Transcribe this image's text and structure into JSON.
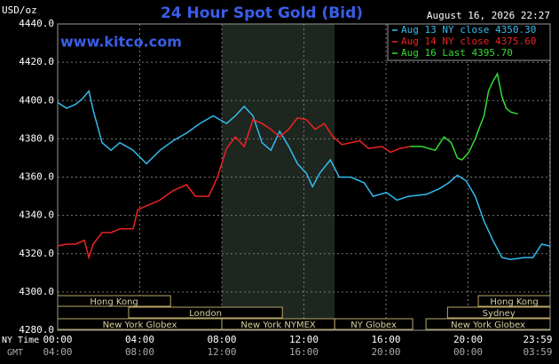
{
  "chart_data": {
    "type": "line",
    "title": "24 Hour Spot Gold (Bid)",
    "unit_label": "USD/oz",
    "timestamp": "August 16, 2026 22:27",
    "site": "www.kitco.com",
    "x_row_labels": [
      "NY Time",
      "GMT"
    ],
    "xlim": [
      0,
      24
    ],
    "xticks": [
      {
        "value": 0,
        "label": "00:00"
      },
      {
        "value": 4,
        "label": "04:00"
      },
      {
        "value": 8,
        "label": "08:00"
      },
      {
        "value": 12,
        "label": "12:00"
      },
      {
        "value": 16,
        "label": "16:00"
      },
      {
        "value": 20,
        "label": "20:00"
      },
      {
        "value": 23.98,
        "label": "23:59"
      }
    ],
    "xticks_gmt": [
      "04:00",
      "08:00",
      "12:00",
      "16:00",
      "20:00",
      "00:00",
      "03:59"
    ],
    "ylim": [
      4280,
      4440
    ],
    "yticks": [
      {
        "value": 4280,
        "label": "4280.0"
      },
      {
        "value": 4300,
        "label": "4300.0"
      },
      {
        "value": 4320,
        "label": "4320.0"
      },
      {
        "value": 4340,
        "label": "4340.0"
      },
      {
        "value": 4360,
        "label": "4360.0"
      },
      {
        "value": 4380,
        "label": "4380.0"
      },
      {
        "value": 4400,
        "label": "4400.0"
      },
      {
        "value": 4420,
        "label": "4420.0"
      },
      {
        "value": 4440,
        "label": "4440.0"
      }
    ],
    "grid": true,
    "shaded_span": [
      8,
      13.5
    ],
    "session_rows": [
      [
        {
          "name": "Hong Kong",
          "start": 0,
          "end": 5.5
        },
        {
          "name": "Hong Kong",
          "start": 20.5,
          "end": 24
        }
      ],
      [
        {
          "name": "London",
          "start": 3.46,
          "end": 10.95
        },
        {
          "name": "Sydney",
          "start": 19,
          "end": 24
        }
      ],
      [
        {
          "name": "New York Globex",
          "start": 0,
          "end": 8
        },
        {
          "name": "New York NYMEX",
          "start": 8,
          "end": 13.5
        },
        {
          "name": "NY Globex",
          "start": 13.5,
          "end": 17.3
        },
        {
          "name": "New York Globex",
          "start": 17.95,
          "end": 24
        }
      ]
    ],
    "series": [
      {
        "name": "Aug 13 NY close 4350.30",
        "color": "#33bbee",
        "x": [
          0,
          0.43,
          0.87,
          1.21,
          1.52,
          1.73,
          2.16,
          2.6,
          3.03,
          3.68,
          4.33,
          4.98,
          5.63,
          6.28,
          6.93,
          7.58,
          8.23,
          8.66,
          9.09,
          9.52,
          9.96,
          10.39,
          10.82,
          11.26,
          11.69,
          12.12,
          12.42,
          12.77,
          13.29,
          13.72,
          14.29,
          14.94,
          15.37,
          16.02,
          16.54,
          17.1,
          17.97,
          18.61,
          19.05,
          19.48,
          19.91,
          20.35,
          20.78,
          21.21,
          21.65,
          22.08,
          22.73,
          23.16,
          23.59,
          24
        ],
        "values": [
          4399,
          4396,
          4398,
          4401,
          4405,
          4395,
          4378,
          4374,
          4378,
          4374,
          4367,
          4374,
          4379,
          4383,
          4388,
          4392,
          4388,
          4392,
          4397,
          4392,
          4378,
          4374,
          4384,
          4376,
          4367,
          4362,
          4355,
          4362,
          4369,
          4360,
          4360,
          4357,
          4350,
          4352,
          4348,
          4350,
          4351,
          4354,
          4357,
          4361,
          4358,
          4350,
          4337,
          4327,
          4318,
          4317,
          4318,
          4318,
          4325,
          4324
        ]
      },
      {
        "name": "Aug 14 NY close 4375.60",
        "color": "#ee2222",
        "x": [
          0,
          0.43,
          0.87,
          1.3,
          1.52,
          1.73,
          2.16,
          2.6,
          3.03,
          3.68,
          3.9,
          4.33,
          4.98,
          5.63,
          6.28,
          6.71,
          7.36,
          7.79,
          8.23,
          8.66,
          9.09,
          9.52,
          9.96,
          10.39,
          10.82,
          11.26,
          11.69,
          12.12,
          12.55,
          12.99,
          13.42,
          13.85,
          14.29,
          14.72,
          15.15,
          15.8,
          16.23,
          16.67,
          17.19
        ],
        "values": [
          4324,
          4325,
          4325,
          4327,
          4318,
          4325,
          4331,
          4331,
          4333,
          4333,
          4343,
          4345,
          4348,
          4353,
          4356,
          4350,
          4350,
          4360,
          4375,
          4381,
          4376,
          4390,
          4388,
          4385,
          4381,
          4385,
          4391,
          4390,
          4385,
          4388,
          4381,
          4377,
          4378,
          4379,
          4375,
          4376,
          4373,
          4375,
          4376
        ]
      },
      {
        "name": "Aug 16 Last 4395.70",
        "color": "#33dd33",
        "x": [
          17.19,
          17.75,
          18.4,
          18.83,
          19.18,
          19.48,
          19.7,
          20.04,
          20.35,
          20.56,
          20.78,
          21,
          21.21,
          21.43,
          21.65,
          21.86,
          22.08,
          22.42
        ],
        "values": [
          4376,
          4376,
          4374,
          4381,
          4378,
          4370,
          4369,
          4373,
          4380,
          4386,
          4392,
          4405,
          4410,
          4414,
          4402,
          4396,
          4394,
          4393
        ]
      }
    ]
  }
}
